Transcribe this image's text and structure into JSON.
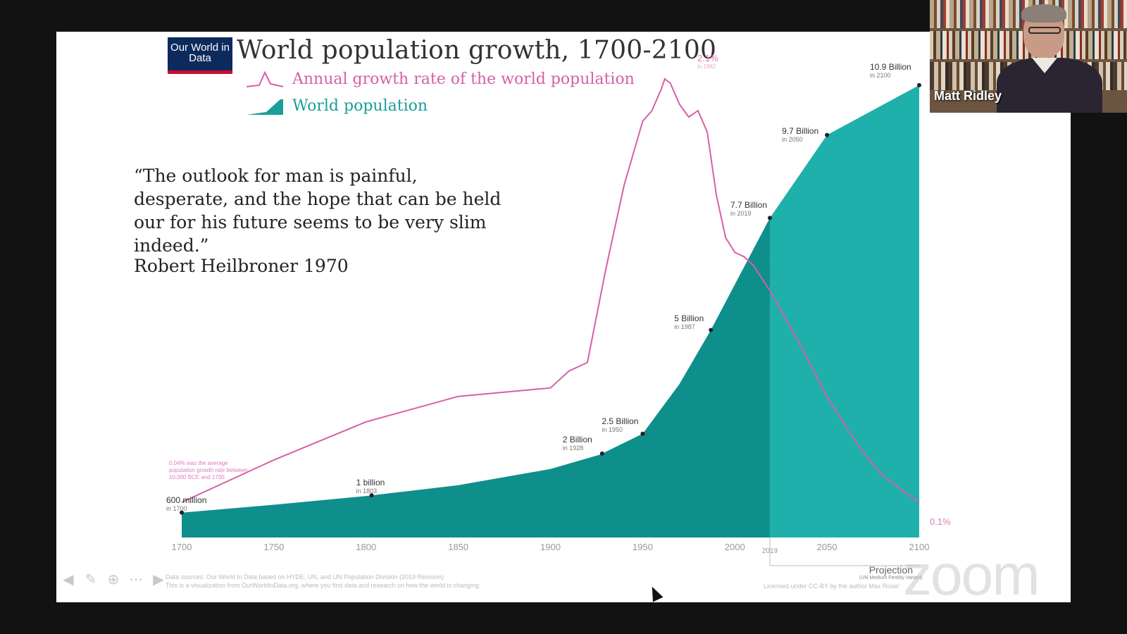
{
  "slide": {
    "logo": "Our World in Data",
    "title": "World population growth, 1700-2100",
    "legend_growth": "Annual growth rate of the world population",
    "legend_population": "World population",
    "quote": "“The outlook for man is painful,\ndesperate, and the hope that can be held\nour for his future  seems to be very slim\nindeed.”",
    "quote_author": "Robert Heilbroner 1970",
    "growth_note": "0.04% was the average population growth rate between 10,000 BCE and 1700",
    "growth_peak": {
      "value": "2.1%",
      "sub": "in 1962"
    },
    "growth_end": "0.1%",
    "projection": {
      "label": "Projection",
      "sub": "(UN Medium Fertility Variant)"
    },
    "sources_line1": "Data sources: Our World in Data based on HYDE, UN, and UN Population Division (2019 Revision)",
    "sources_line2": "This is a visualization from OurWorldinData.org, where you find data and research on how the world is changing.",
    "license": "Licensed under CC-BY by the author Max Roser"
  },
  "chart_data": {
    "type": "area",
    "x_ticks": [
      "1700",
      "1750",
      "1800",
      "1850",
      "1900",
      "1950",
      "2000",
      "2050",
      "2100"
    ],
    "projection_start_tick": "2019",
    "xlim": [
      1700,
      2100
    ],
    "colors": {
      "population": "#0f8f8b",
      "projection": "#1fb0ab",
      "growth": "#d65fa8"
    },
    "series": [
      {
        "name": "World population",
        "unit": "billion",
        "x": [
          1700,
          1750,
          1800,
          1850,
          1900,
          1927,
          1950,
          1970,
          1987,
          2000,
          2019,
          2050,
          2100
        ],
        "values": [
          0.6,
          0.79,
          1.0,
          1.26,
          1.65,
          2.0,
          2.5,
          3.7,
          5.0,
          6.1,
          7.7,
          9.7,
          10.9
        ],
        "annotations": [
          {
            "label": "600 million",
            "sub": "in 1700",
            "x": 1700
          },
          {
            "label": "1 billion",
            "sub": "in 1803",
            "x": 1803
          },
          {
            "label": "2 Billion",
            "sub": "in 1928",
            "x": 1928
          },
          {
            "label": "2.5 Billion",
            "sub": "in 1950",
            "x": 1950
          },
          {
            "label": "5 Billion",
            "sub": "in 1987",
            "x": 1987
          },
          {
            "label": "7.7 Billion",
            "sub": "in 2019",
            "x": 2019
          },
          {
            "label": "9.7 Billion",
            "sub": "in 2050",
            "x": 2050
          },
          {
            "label": "10.9 Billion",
            "sub": "in 2100",
            "x": 2100
          }
        ]
      },
      {
        "name": "Annual growth rate of the world population",
        "unit": "percent",
        "x": [
          1700,
          1750,
          1800,
          1850,
          1900,
          1910,
          1920,
          1930,
          1940,
          1950,
          1955,
          1960,
          1962,
          1965,
          1970,
          1975,
          1980,
          1985,
          1990,
          1995,
          2000,
          2005,
          2010,
          2019,
          2030,
          2040,
          2050,
          2060,
          2070,
          2080,
          2090,
          2100
        ],
        "values": [
          0.1,
          0.3,
          0.48,
          0.6,
          0.64,
          0.72,
          0.76,
          1.2,
          1.6,
          1.9,
          1.95,
          2.05,
          2.1,
          2.08,
          1.98,
          1.92,
          1.95,
          1.85,
          1.55,
          1.35,
          1.28,
          1.26,
          1.22,
          1.1,
          0.93,
          0.77,
          0.6,
          0.46,
          0.33,
          0.23,
          0.16,
          0.1
        ]
      }
    ]
  },
  "video": {
    "speaker": "Matt Ridley"
  },
  "watermark": "zoom",
  "toolbar": {
    "prev_icon": "arrow-left-icon",
    "pen_icon": "pencil-icon",
    "zoom_in_icon": "magnifier-icon",
    "more_icon": "ellipsis-icon",
    "next_icon": "arrow-right-icon"
  }
}
